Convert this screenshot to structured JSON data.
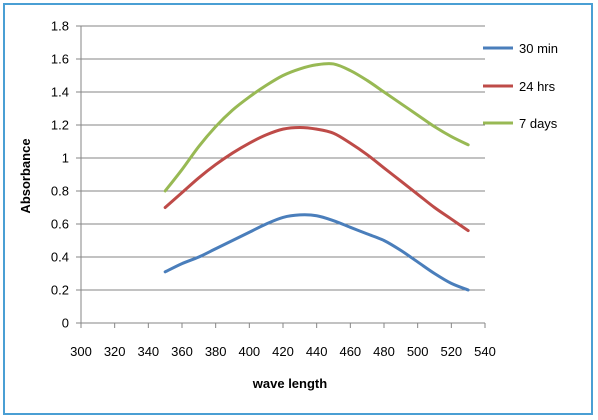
{
  "chart_data": {
    "type": "line",
    "title": "",
    "xlabel": "wave length",
    "ylabel": "Absorbance",
    "xlim": [
      300,
      540
    ],
    "ylim": [
      0,
      1.8
    ],
    "xticks": [
      "300",
      "320",
      "340",
      "360",
      "380",
      "400",
      "420",
      "440",
      "460",
      "480",
      "500",
      "520",
      "540"
    ],
    "yticks": [
      "0",
      "0.2",
      "0.4",
      "0.6",
      "0.8",
      "1",
      "1.2",
      "1.4",
      "1.6",
      "1.8"
    ],
    "grid": "horizontal",
    "legend_position": "right",
    "x": [
      350,
      360,
      370,
      380,
      390,
      400,
      410,
      420,
      430,
      440,
      450,
      460,
      470,
      480,
      490,
      500,
      510,
      520,
      530
    ],
    "series": [
      {
        "name": "30 min",
        "color": "#4a7ebb",
        "values": [
          0.31,
          0.36,
          0.4,
          0.45,
          0.5,
          0.55,
          0.6,
          0.64,
          0.655,
          0.65,
          0.62,
          0.58,
          0.54,
          0.5,
          0.44,
          0.37,
          0.3,
          0.24,
          0.2
        ]
      },
      {
        "name": "24 hrs",
        "color": "#be4b48",
        "values": [
          0.7,
          0.79,
          0.88,
          0.96,
          1.03,
          1.09,
          1.14,
          1.175,
          1.185,
          1.175,
          1.15,
          1.09,
          1.02,
          0.94,
          0.86,
          0.78,
          0.7,
          0.63,
          0.56
        ]
      },
      {
        "name": "7 days",
        "color": "#98b954",
        "values": [
          0.8,
          0.93,
          1.07,
          1.19,
          1.29,
          1.37,
          1.44,
          1.5,
          1.54,
          1.565,
          1.57,
          1.53,
          1.47,
          1.4,
          1.33,
          1.26,
          1.19,
          1.13,
          1.08
        ]
      }
    ]
  }
}
